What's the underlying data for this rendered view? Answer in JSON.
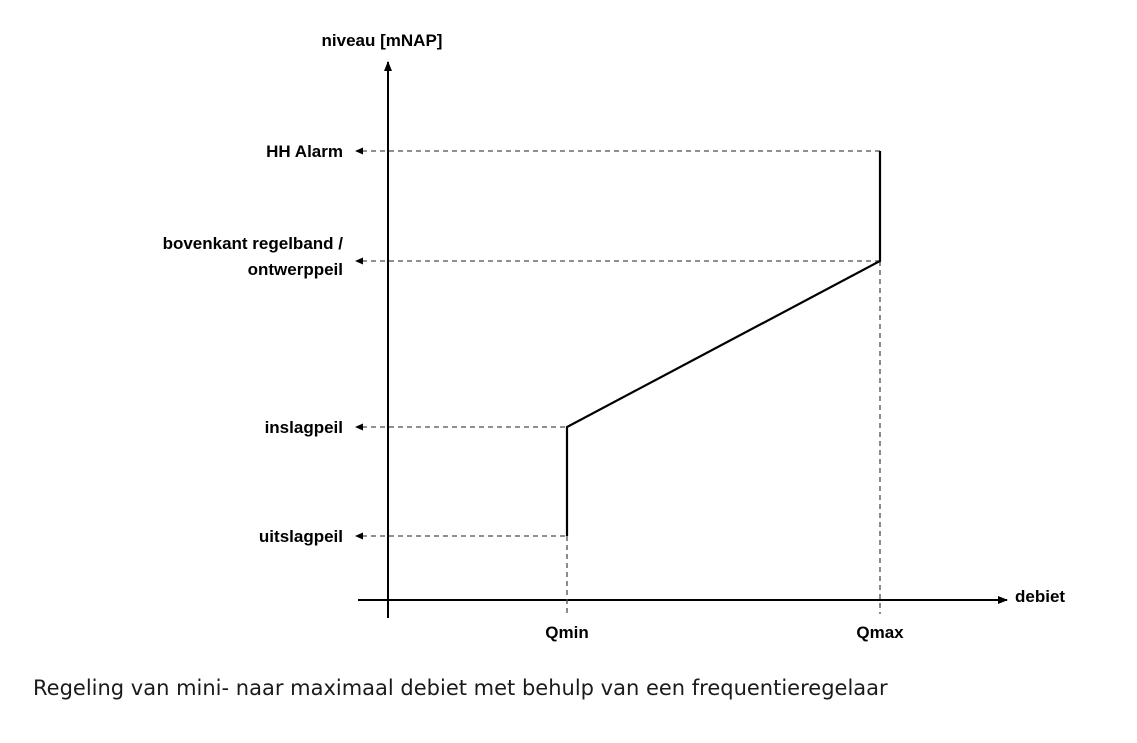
{
  "axes": {
    "y_label": "niveau [mNAP]",
    "x_label": "debiet"
  },
  "levels": {
    "hh_alarm": "HH Alarm",
    "bovenkant_line1": "bovenkant regelband /",
    "bovenkant_line2": "ontwerppeil",
    "inslagpeil": "inslagpeil",
    "uitslagpeil": "uitslagpeil"
  },
  "flows": {
    "qmin": "Qmin",
    "qmax": "Qmax"
  },
  "caption": "Regeling van mini- naar maximaal debiet met behulp van een frequentieregelaar",
  "colors": {
    "line": "#000000",
    "dashed": "#4d4d4d",
    "caption": "#1a1a1a"
  }
}
